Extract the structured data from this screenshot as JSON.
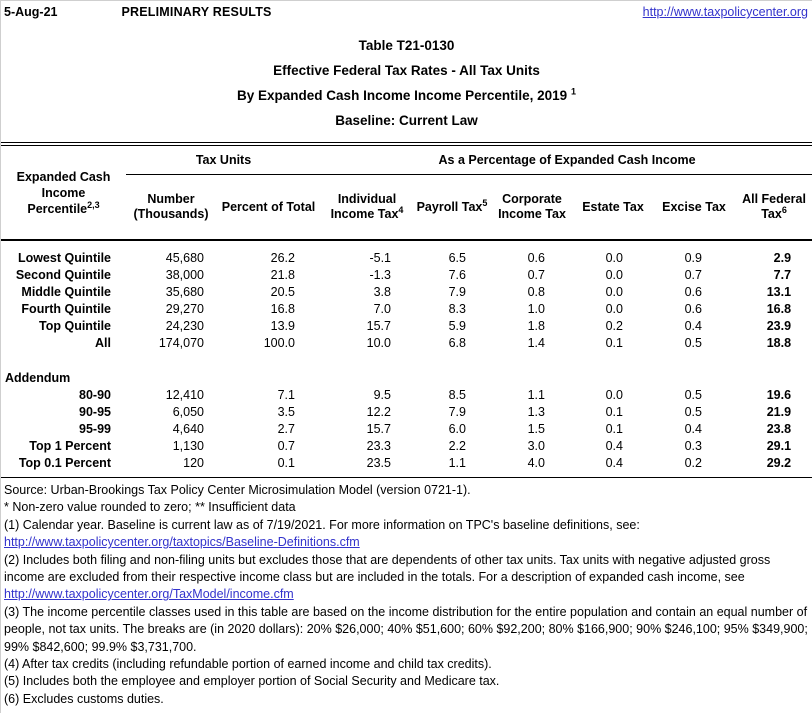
{
  "colors": {
    "link_blue": "#3333cc",
    "text": "#000000",
    "background": "#ffffff"
  },
  "topbar": {
    "date": "5-Aug-21",
    "status": "PRELIMINARY RESULTS",
    "site_link": "http://www.taxpolicycenter.org"
  },
  "title": {
    "line1": "Table T21-0130",
    "line2": "Effective Federal Tax Rates - All Tax Units",
    "line3": "By Expanded Cash Income Income Percentile, 2019",
    "line3_superscript": "1",
    "line4": "Baseline: Current Law"
  },
  "table": {
    "row_header": {
      "label": "Expanded Cash Income Percentile",
      "superscript": "2,3"
    },
    "groups": [
      {
        "label": "Tax Units"
      },
      {
        "label": "As a Percentage of Expanded Cash Income"
      }
    ],
    "columns": [
      {
        "label": "Number (Thousands)",
        "superscript": ""
      },
      {
        "label": "Percent of Total",
        "superscript": ""
      },
      {
        "label": "Individual Income Tax",
        "superscript": "4"
      },
      {
        "label": "Payroll Tax",
        "superscript": "5"
      },
      {
        "label": "Corporate Income Tax",
        "superscript": ""
      },
      {
        "label": "Estate Tax",
        "superscript": ""
      },
      {
        "label": "Excise Tax",
        "superscript": ""
      },
      {
        "label": "All Federal Tax",
        "superscript": "6"
      }
    ],
    "rows": [
      [
        "Lowest Quintile",
        "45,680",
        "26.2",
        "-5.1",
        "6.5",
        "0.6",
        "0.0",
        "0.9",
        "2.9"
      ],
      [
        "Second Quintile",
        "38,000",
        "21.8",
        "-1.3",
        "7.6",
        "0.7",
        "0.0",
        "0.7",
        "7.7"
      ],
      [
        "Middle Quintile",
        "35,680",
        "20.5",
        "3.8",
        "7.9",
        "0.8",
        "0.0",
        "0.6",
        "13.1"
      ],
      [
        "Fourth Quintile",
        "29,270",
        "16.8",
        "7.0",
        "8.3",
        "1.0",
        "0.0",
        "0.6",
        "16.8"
      ],
      [
        "Top Quintile",
        "24,230",
        "13.9",
        "15.7",
        "5.9",
        "1.8",
        "0.2",
        "0.4",
        "23.9"
      ],
      [
        "All",
        "174,070",
        "100.0",
        "10.0",
        "6.8",
        "1.4",
        "0.1",
        "0.5",
        "18.8"
      ]
    ],
    "addendum_label": "Addendum",
    "addendum_rows": [
      [
        "80-90",
        "12,410",
        "7.1",
        "9.5",
        "8.5",
        "1.1",
        "0.0",
        "0.5",
        "19.6"
      ],
      [
        "90-95",
        "6,050",
        "3.5",
        "12.2",
        "7.9",
        "1.3",
        "0.1",
        "0.5",
        "21.9"
      ],
      [
        "95-99",
        "4,640",
        "2.7",
        "15.7",
        "6.0",
        "1.5",
        "0.1",
        "0.4",
        "23.8"
      ],
      [
        "Top 1 Percent",
        "1,130",
        "0.7",
        "23.3",
        "2.2",
        "3.0",
        "0.4",
        "0.3",
        "29.1"
      ],
      [
        "Top 0.1 Percent",
        "120",
        "0.1",
        "23.5",
        "1.1",
        "4.0",
        "0.4",
        "0.2",
        "29.2"
      ]
    ]
  },
  "footnotes": {
    "source": "Source: Urban-Brookings Tax Policy Center Microsimulation Model (version 0721-1).",
    "symbols": "* Non-zero value rounded to zero; ** Insufficient data",
    "note1": "(1) Calendar year. Baseline is current law as of 7/19/2021. For more information on TPC's baseline definitions, see:",
    "note1_link": "http://www.taxpolicycenter.org/taxtopics/Baseline-Definitions.cfm",
    "note2": "(2) Includes both filing and non-filing units but excludes those that are dependents of other tax units. Tax units with negative adjusted gross income are excluded from their respective income class but are included in the totals. For a description of expanded cash income, see",
    "note2_link": "http://www.taxpolicycenter.org/TaxModel/income.cfm",
    "note3": "(3) The income percentile classes used in this table are based on the income distribution for the entire population and contain an equal number of people, not tax units. The breaks are (in 2020 dollars): 20% $26,000; 40% $51,600; 60% $92,200; 80% $166,900; 90% $246,100; 95% $349,900; 99% $842,600; 99.9% $3,731,700.",
    "note4": "(4) After tax credits (including refundable portion of earned income and child tax credits).",
    "note5": "(5) Includes both the employee and employer portion of Social Security and Medicare tax.",
    "note6": "(6) Excludes customs duties."
  }
}
